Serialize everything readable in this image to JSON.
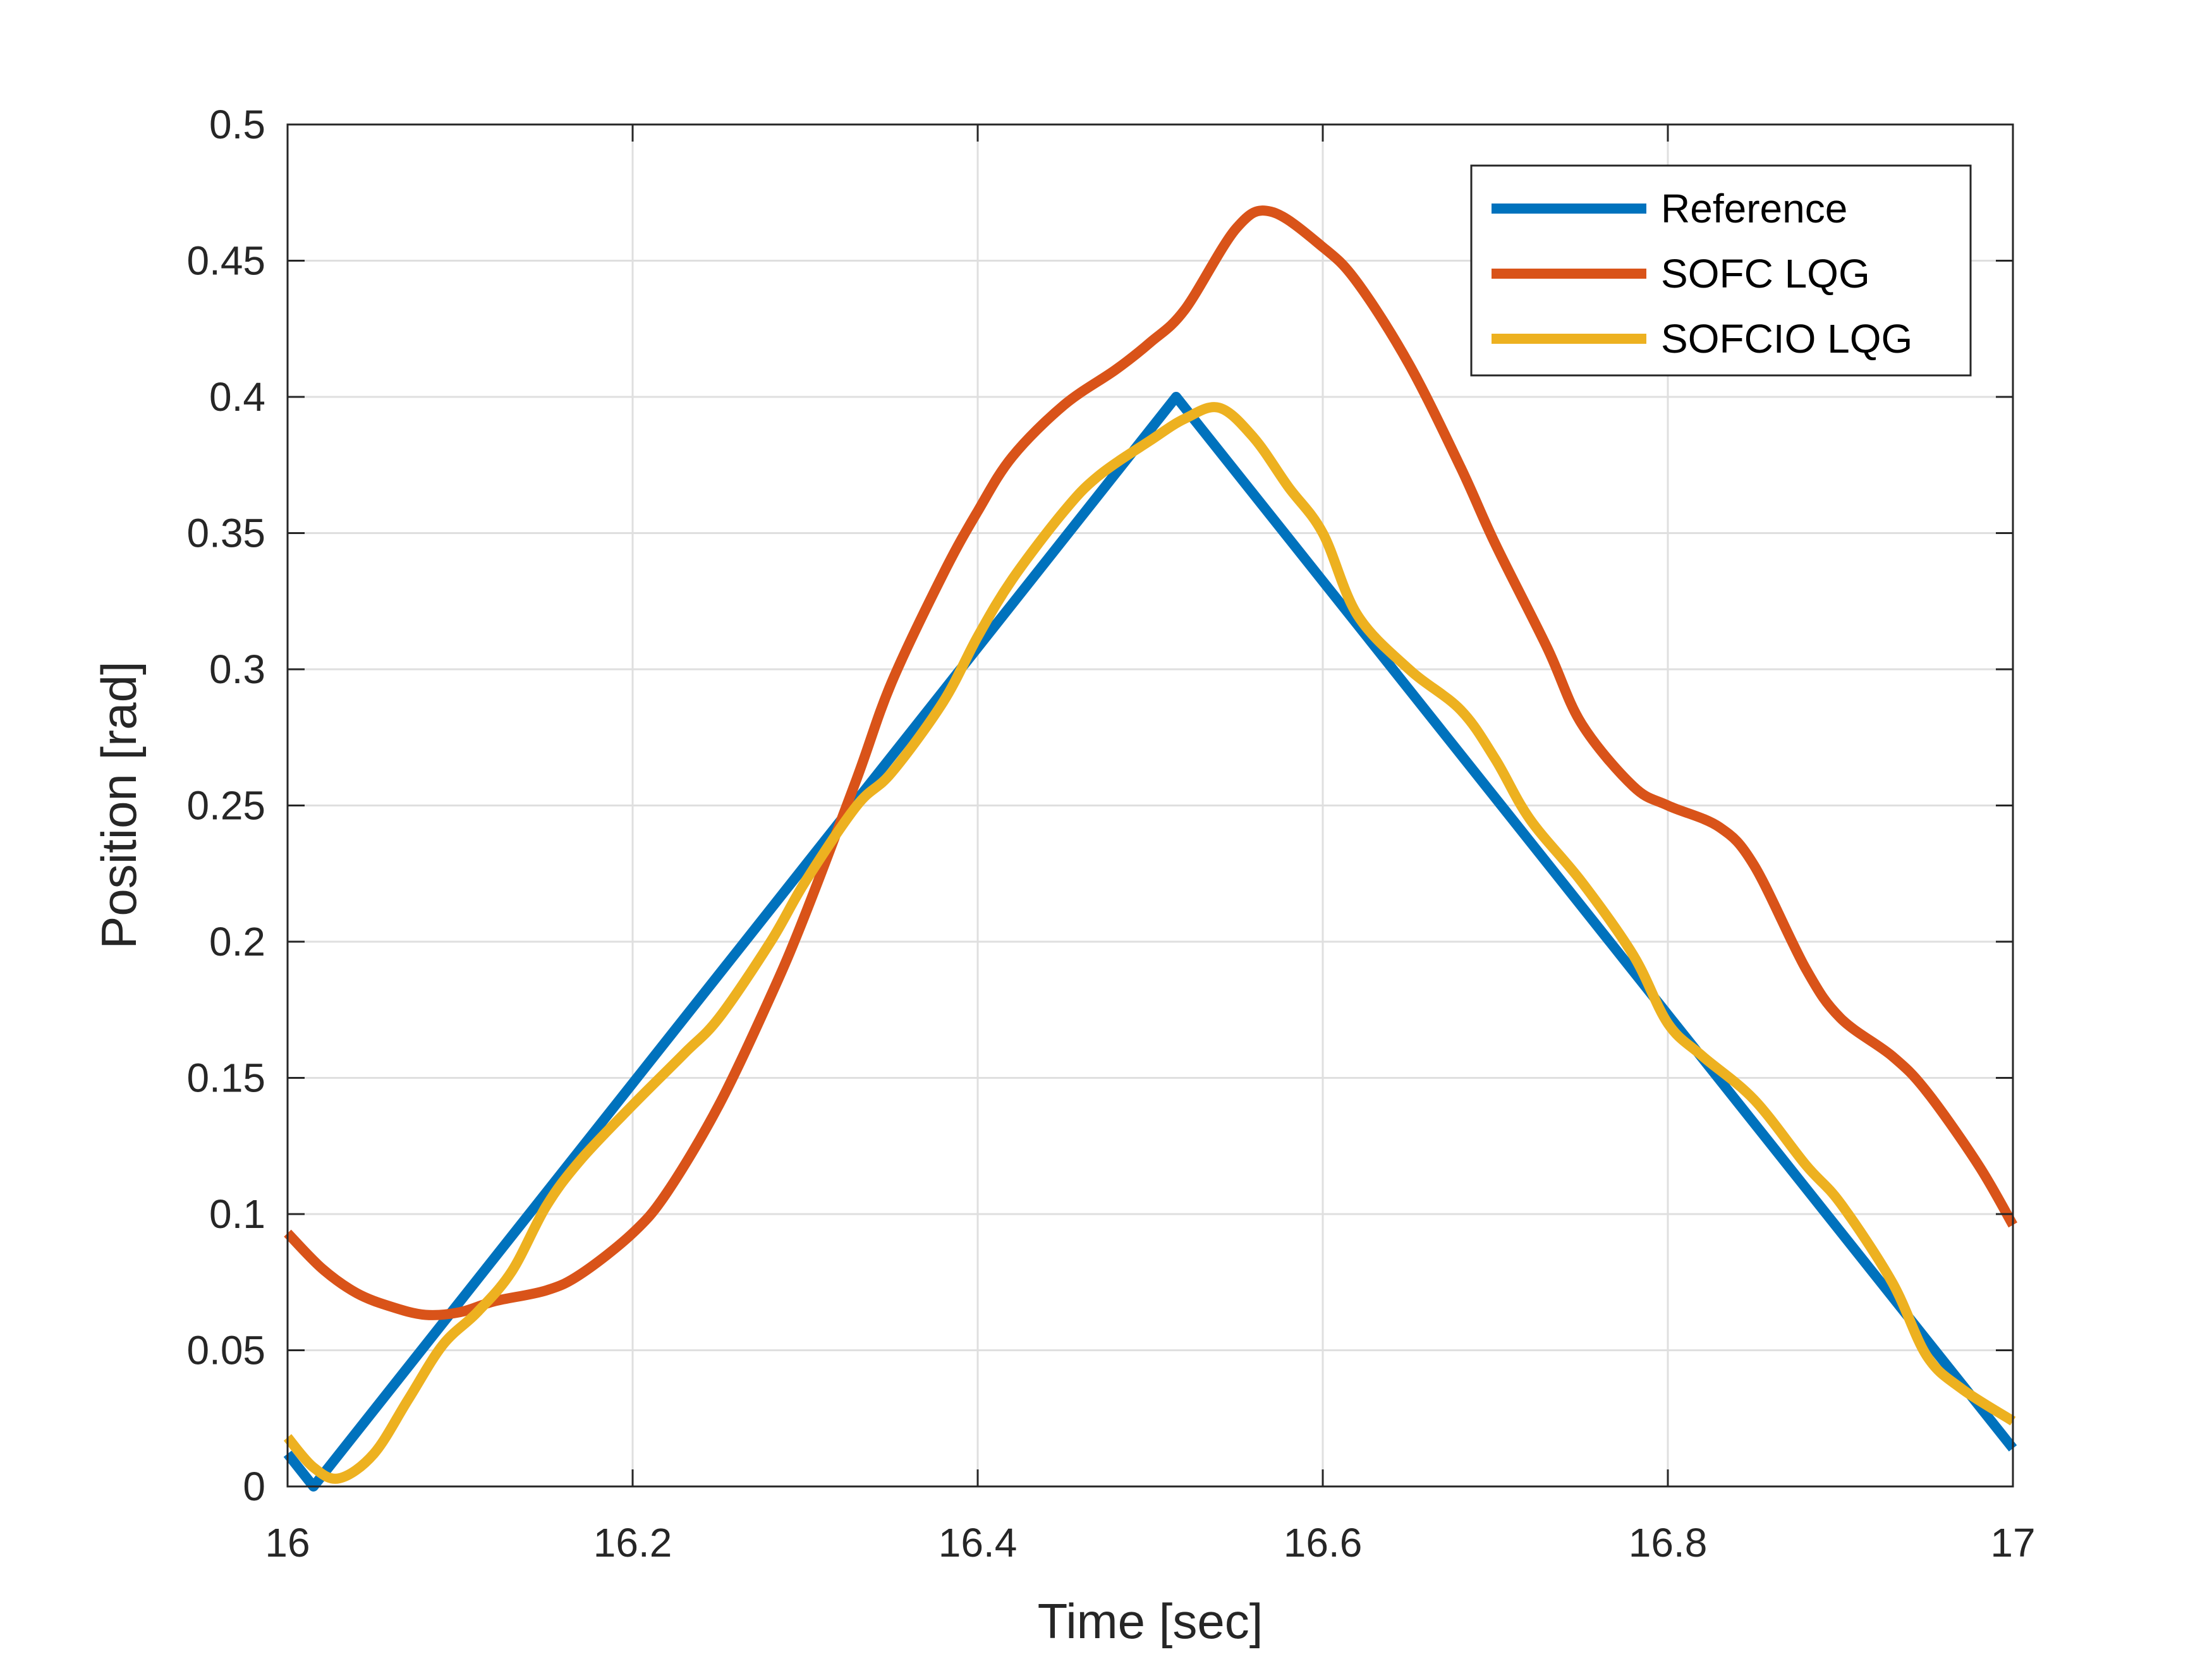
{
  "chart_data": {
    "type": "line",
    "title": "",
    "xlabel": "Time [sec]",
    "ylabel": "Position [rad]",
    "xlim": [
      16,
      17
    ],
    "ylim": [
      0,
      0.5
    ],
    "xticks": [
      16,
      16.2,
      16.4,
      16.6,
      16.8,
      17
    ],
    "xtick_labels": [
      "16",
      "16.2",
      "16.4",
      "16.6",
      "16.8",
      "17"
    ],
    "yticks": [
      0,
      0.05,
      0.1,
      0.15,
      0.2,
      0.25,
      0.3,
      0.35,
      0.4,
      0.45,
      0.5
    ],
    "ytick_labels": [
      "0",
      "0.05",
      "0.1",
      "0.15",
      "0.2",
      "0.25",
      "0.3",
      "0.35",
      "0.4",
      "0.45",
      "0.5"
    ],
    "grid": true,
    "legend_position": "top-right",
    "series": [
      {
        "name": "Reference",
        "color": "#0072BD",
        "x": [
          16.0,
          16.015,
          16.515,
          17.0
        ],
        "y": [
          0.012,
          0.0,
          0.4,
          0.014
        ]
      },
      {
        "name": "SOFC LQG",
        "color": "#D95319",
        "x": [
          16.0,
          16.02,
          16.04,
          16.06,
          16.08,
          16.1,
          16.12,
          16.15,
          16.17,
          16.2,
          16.22,
          16.25,
          16.28,
          16.3,
          16.33,
          16.35,
          16.38,
          16.4,
          16.42,
          16.45,
          16.48,
          16.5,
          16.52,
          16.55,
          16.57,
          16.6,
          16.62,
          16.65,
          16.68,
          16.7,
          16.73,
          16.75,
          16.78,
          16.8,
          16.83,
          16.85,
          16.88,
          16.9,
          16.93,
          16.95,
          16.98,
          17.0
        ],
        "y": [
          0.093,
          0.08,
          0.071,
          0.066,
          0.063,
          0.064,
          0.068,
          0.072,
          0.078,
          0.093,
          0.108,
          0.14,
          0.18,
          0.21,
          0.26,
          0.295,
          0.335,
          0.358,
          0.378,
          0.397,
          0.41,
          0.42,
          0.432,
          0.462,
          0.468,
          0.455,
          0.442,
          0.412,
          0.374,
          0.346,
          0.308,
          0.28,
          0.257,
          0.25,
          0.242,
          0.228,
          0.19,
          0.172,
          0.158,
          0.145,
          0.118,
          0.096
        ]
      },
      {
        "name": "SOFCIO LQG",
        "color": "#EDB120",
        "x": [
          16.0,
          16.015,
          16.03,
          16.05,
          16.07,
          16.09,
          16.11,
          16.13,
          16.15,
          16.17,
          16.2,
          16.23,
          16.25,
          16.28,
          16.3,
          16.33,
          16.35,
          16.38,
          16.4,
          16.42,
          16.45,
          16.47,
          16.5,
          16.52,
          16.54,
          16.56,
          16.58,
          16.6,
          16.62,
          16.65,
          16.68,
          16.7,
          16.72,
          16.75,
          16.78,
          16.8,
          16.82,
          16.85,
          16.88,
          16.9,
          16.93,
          16.95,
          16.97,
          17.0
        ],
        "y": [
          0.018,
          0.007,
          0.003,
          0.012,
          0.032,
          0.052,
          0.064,
          0.079,
          0.103,
          0.12,
          0.14,
          0.159,
          0.172,
          0.2,
          0.222,
          0.25,
          0.262,
          0.288,
          0.312,
          0.333,
          0.358,
          0.371,
          0.384,
          0.392,
          0.396,
          0.385,
          0.367,
          0.35,
          0.32,
          0.3,
          0.285,
          0.267,
          0.245,
          0.222,
          0.195,
          0.17,
          0.158,
          0.142,
          0.118,
          0.104,
          0.075,
          0.048,
          0.036,
          0.024
        ]
      }
    ]
  }
}
